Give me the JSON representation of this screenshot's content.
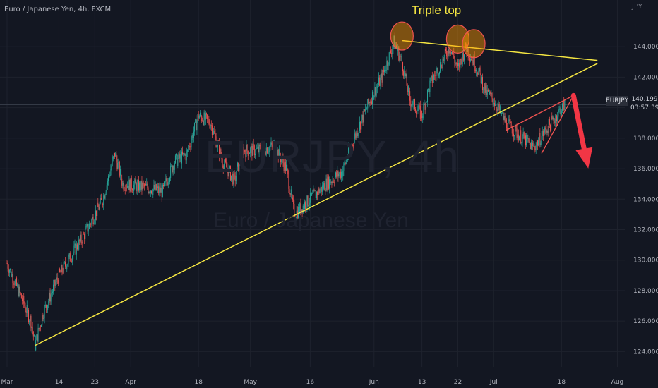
{
  "title": "Euro / Japanese Yen, 4h, FXCM",
  "watermark": {
    "main": "EURJPY, 4h",
    "sub": "Euro / Japanese Yen"
  },
  "currency_label": "JPY",
  "price_tag": {
    "symbol": "EURJPY",
    "price": "140.199",
    "countdown": "03:57:39"
  },
  "annotation": "Triple top",
  "colors": {
    "bg": "#131722",
    "up": "#26a69a",
    "down": "#ef5350",
    "trend": "#f5e642",
    "arrow": "#f23645"
  },
  "chart_data": {
    "type": "candlestick",
    "ylim": [
      123,
      146.6
    ],
    "y_ticks": [
      124,
      126,
      128,
      130,
      132,
      134,
      136,
      138,
      140,
      142,
      144
    ],
    "y_tick_labels": [
      "124.000",
      "126.000",
      "128.000",
      "130.000",
      "132.000",
      "134.000",
      "136.000",
      "138.000",
      "140.000",
      "142.000",
      "144.000"
    ],
    "x_ticks": [
      "Mar",
      "14",
      "23",
      "Apr",
      "18",
      "May",
      "16",
      "Jun",
      "13",
      "22",
      "Jul",
      "18",
      "Aug"
    ],
    "price_path": [
      [
        "Mar 1",
        129.8
      ],
      [
        "Mar 7",
        126.0
      ],
      [
        "Mar 8",
        124.4
      ],
      [
        "Mar 10",
        126.5
      ],
      [
        "Mar 14",
        129.0
      ],
      [
        "Mar 20",
        131.5
      ],
      [
        "Mar 25",
        134.0
      ],
      [
        "Mar 28",
        137.0
      ],
      [
        "Mar 30",
        135.0
      ],
      [
        "Apr 4",
        134.8
      ],
      [
        "Apr 9",
        134.5
      ],
      [
        "Apr 12",
        136.5
      ],
      [
        "Apr 15",
        136.9
      ],
      [
        "Apr 18",
        139.5
      ],
      [
        "Apr 21",
        139.0
      ],
      [
        "Apr 24",
        136.5
      ],
      [
        "Apr 27",
        135.2
      ],
      [
        "Apr 29",
        137.2
      ],
      [
        "May 3",
        137.2
      ],
      [
        "May 7",
        137.5
      ],
      [
        "May 10",
        136.0
      ],
      [
        "May 12",
        133.0
      ],
      [
        "May 16",
        134.0
      ],
      [
        "May 20",
        135.0
      ],
      [
        "May 24",
        135.8
      ],
      [
        "May 27",
        138.0
      ],
      [
        "May 31",
        140.5
      ],
      [
        "Jun 3",
        142.0
      ],
      [
        "Jun 6",
        144.3
      ],
      [
        "Jun 8",
        143.0
      ],
      [
        "Jun 10",
        140.5
      ],
      [
        "Jun 13",
        139.5
      ],
      [
        "Jun 15",
        141.5
      ],
      [
        "Jun 20",
        144.0
      ],
      [
        "Jun 22",
        142.5
      ],
      [
        "Jun 24",
        144.0
      ],
      [
        "Jun 27",
        142.5
      ],
      [
        "Jun 29",
        141.0
      ],
      [
        "Jul 1",
        140.5
      ],
      [
        "Jul 4",
        139.0
      ],
      [
        "Jul 7",
        138.3
      ],
      [
        "Jul 11",
        137.4
      ],
      [
        "Jul 14",
        138.5
      ],
      [
        "Jul 17",
        139.6
      ],
      [
        "Jul 19",
        140.3
      ]
    ],
    "drawings": {
      "support_trendline": [
        [
          "Mar 8",
          124.4
        ],
        [
          "Jul 27",
          142.9
        ]
      ],
      "resistance_trendline": [
        [
          "Jun 8",
          144.4
        ],
        [
          "Jul 27",
          143.1
        ]
      ],
      "wedge_upper": [
        [
          "Jul 4",
          138.5
        ],
        [
          "Jul 21",
          140.8
        ]
      ],
      "wedge_lower": [
        [
          "Jul 13",
          137.0
        ],
        [
          "Jul 21",
          140.8
        ]
      ],
      "forecast_arrow": [
        [
          "Jul 21",
          140.8
        ],
        [
          "Jul 24",
          136.2
        ]
      ],
      "top_circles": [
        [
          "Jun 8",
          144.7
        ],
        [
          "Jun 22",
          144.5
        ],
        [
          "Jun 26",
          144.2
        ]
      ]
    }
  }
}
